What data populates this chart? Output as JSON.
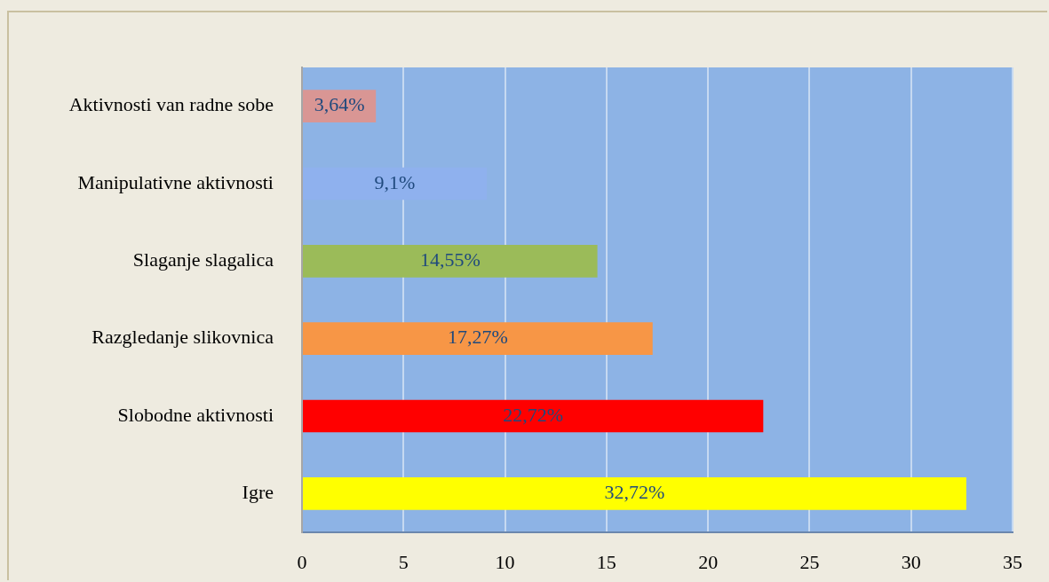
{
  "chart_data": {
    "type": "bar",
    "orientation": "horizontal",
    "categories": [
      "Aktivnosti van radne sobe",
      "Manipulativne aktivnosti",
      "Slaganje slagalica",
      "Razgledanje slikovnica",
      "Slobodne aktivnosti",
      "Igre"
    ],
    "values": [
      3.64,
      9.1,
      14.55,
      17.27,
      22.72,
      32.72
    ],
    "colors": [
      "#d99694",
      "#8fb1ee",
      "#9bbb59",
      "#f79646",
      "#ff0000",
      "#ffff00"
    ],
    "value_labels": [
      "3,64%",
      "9,1%",
      "14,55%",
      "17,27%",
      "22,72%",
      "32,72%"
    ],
    "xlim": [
      0,
      35
    ],
    "xticks": [
      0,
      5,
      10,
      15,
      20,
      25,
      30,
      35
    ],
    "grid": "x"
  }
}
